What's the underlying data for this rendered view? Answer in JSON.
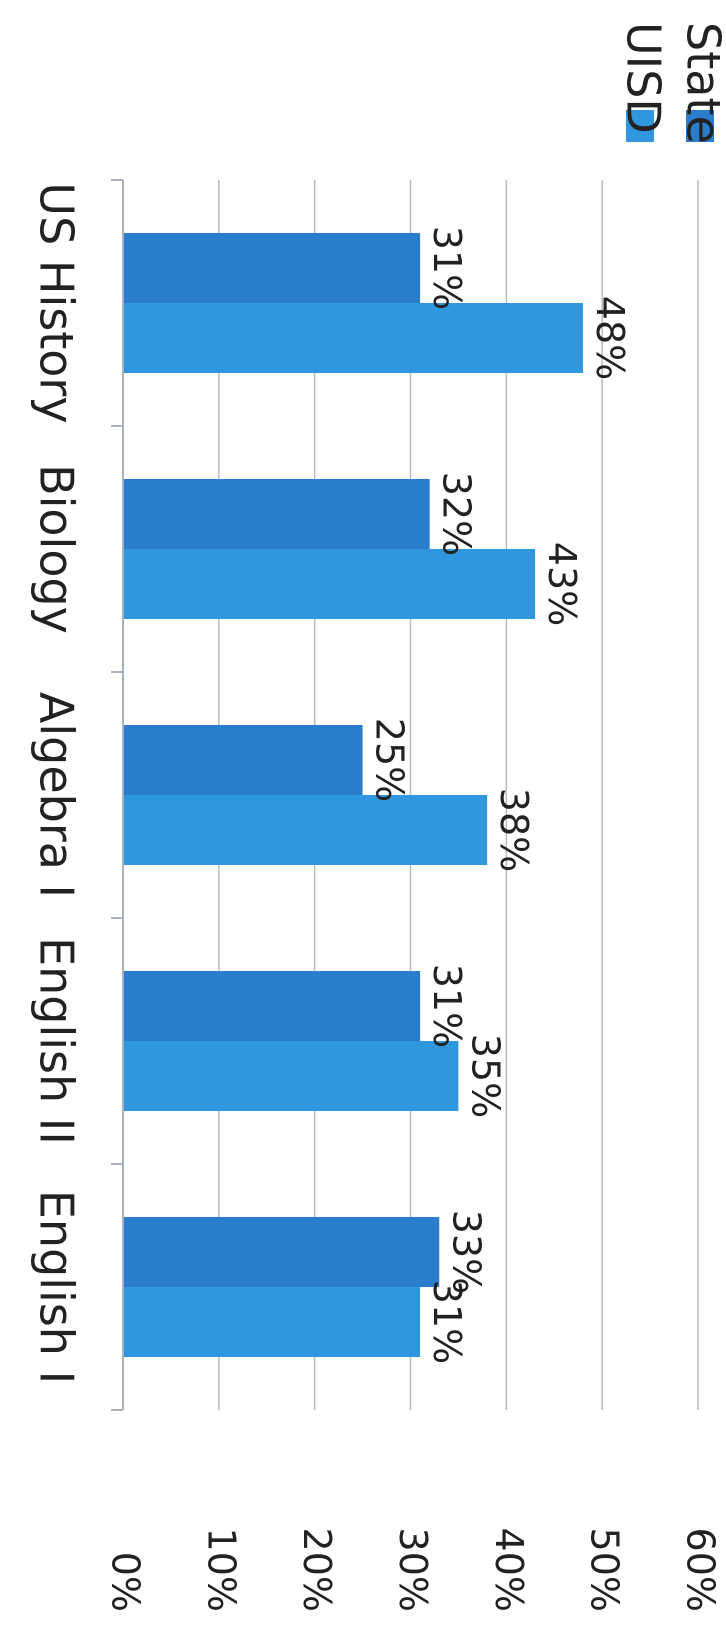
{
  "chart_data": {
    "type": "bar",
    "orientation": "rotated 90 degrees clockwise",
    "categories": [
      "English I",
      "English II",
      "Algebra I",
      "Biology",
      "US History"
    ],
    "series": [
      {
        "name": "UISD",
        "color": "#2f97dd",
        "values": [
          31,
          35,
          38,
          43,
          48
        ],
        "labels": [
          "31%",
          "35%",
          "38%",
          "43%",
          "48%"
        ]
      },
      {
        "name": "State",
        "color": "#2a7ccd",
        "values": [
          33,
          31,
          25,
          32,
          31
        ],
        "labels": [
          "33%",
          "31%",
          "25%",
          "32%",
          "31%"
        ]
      }
    ],
    "ylim": [
      0,
      60
    ],
    "yticks": [
      "0%",
      "10%",
      "20%",
      "30%",
      "40%",
      "50%",
      "60%"
    ],
    "grid": true,
    "legend_position": "top-right"
  }
}
